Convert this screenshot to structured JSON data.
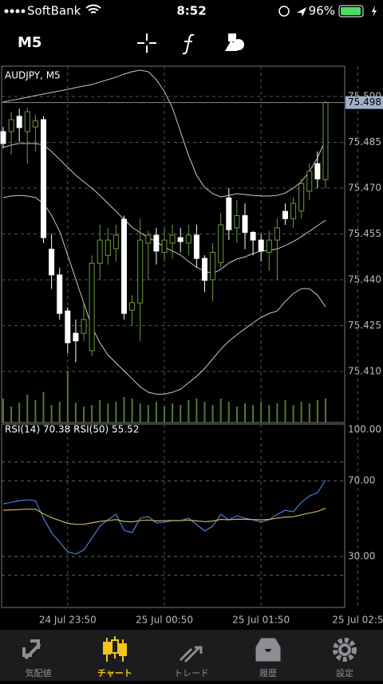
{
  "status_bar": {
    "carrier": "SoftBank",
    "time": "8:52",
    "battery": "96%"
  },
  "toolbar": {
    "timeframe": "M5"
  },
  "chart_data": [
    {
      "type": "candlestick",
      "title": "AUDJPY, M5",
      "categories": [
        null,
        null,
        null,
        null,
        null,
        null,
        null,
        null,
        "24 Jul 23:50",
        null,
        null,
        null,
        null,
        null,
        null,
        null,
        null,
        null,
        null,
        null,
        "25 Jul 00:50",
        null,
        null,
        null,
        null,
        null,
        null,
        null,
        null,
        null,
        null,
        null,
        "25 Jul 01:50",
        null,
        null,
        null,
        null,
        null,
        null,
        null,
        null,
        null,
        null,
        null,
        "25 Jul 02:5"
      ],
      "open": [
        75.4885,
        75.4885,
        75.4935,
        75.4885,
        75.49,
        75.4924,
        75.45,
        75.4416,
        75.4298,
        75.4225,
        75.4225,
        75.4168,
        75.4454,
        75.448,
        75.4502,
        75.4598,
        75.43,
        75.4324,
        75.452,
        75.4546,
        75.449,
        75.452,
        75.4538,
        75.452,
        75.4546,
        75.447,
        75.44,
        75.4456,
        75.4668,
        75.457,
        75.461,
        75.4555,
        75.453,
        75.449,
        75.453,
        75.4624,
        75.46,
        75.4625,
        75.469,
        75.478,
        75.4728,
        null,
        null,
        null,
        null
      ],
      "high": [
        75.49,
        75.495,
        75.496,
        75.4963,
        75.494,
        75.4935,
        75.455,
        75.444,
        75.431,
        75.427,
        75.432,
        75.448,
        75.458,
        75.457,
        75.458,
        75.461,
        75.435,
        75.46,
        75.456,
        75.457,
        75.457,
        75.458,
        75.457,
        75.458,
        75.458,
        75.448,
        75.452,
        75.462,
        75.47,
        75.466,
        75.465,
        75.456,
        75.455,
        75.456,
        75.46,
        75.465,
        75.467,
        75.473,
        75.478,
        75.482,
        75.4985,
        null,
        null,
        null,
        null
      ],
      "low": [
        75.483,
        75.481,
        75.485,
        75.478,
        75.482,
        75.452,
        75.437,
        75.427,
        75.416,
        75.413,
        75.42,
        75.415,
        75.44,
        75.445,
        75.446,
        75.427,
        75.425,
        75.42,
        75.44,
        75.445,
        75.446,
        75.447,
        75.449,
        75.448,
        75.444,
        75.436,
        75.433,
        75.444,
        75.453,
        75.452,
        75.45,
        75.448,
        75.446,
        75.443,
        75.44,
        75.458,
        75.457,
        75.46,
        75.466,
        75.47,
        75.47,
        null,
        null,
        null,
        null
      ],
      "close": [
        75.4846,
        75.4924,
        75.4898,
        75.495,
        75.492,
        75.4538,
        75.4416,
        75.429,
        75.4194,
        75.42,
        75.427,
        75.4454,
        75.453,
        75.453,
        75.4546,
        75.429,
        75.4325,
        75.453,
        75.4546,
        75.4494,
        75.453,
        75.4546,
        75.4525,
        75.4546,
        75.447,
        75.4398,
        75.449,
        75.458,
        75.4564,
        75.461,
        75.4555,
        75.453,
        75.4494,
        75.453,
        75.457,
        75.46,
        75.465,
        75.4715,
        75.4755,
        75.473,
        75.498,
        null,
        null,
        null,
        null
      ],
      "volumes": [
        30,
        20,
        25,
        35,
        28,
        38,
        22,
        26,
        65,
        25,
        20,
        22,
        28,
        24,
        26,
        32,
        30,
        24,
        22,
        26,
        20,
        24,
        22,
        28,
        30,
        26,
        22,
        30,
        26,
        20,
        24,
        22,
        26,
        22,
        24,
        28,
        22,
        26,
        24,
        28,
        30,
        null,
        null,
        null,
        null
      ],
      "lines": [
        {
          "color": "#c8c8c8",
          "values": [
            75.4982,
            75.4987,
            75.4992,
            75.4997,
            75.5003,
            75.5008,
            75.5013,
            75.5018,
            75.5023,
            75.5029,
            75.5034,
            75.5039,
            75.5047,
            75.5055,
            75.5063,
            75.5073,
            75.5081,
            75.5086,
            75.5081,
            75.5055,
            75.5016,
            75.4963,
            75.4885,
            75.4807,
            75.4742,
            75.4702,
            75.4682,
            75.4671,
            75.4676,
            75.4682,
            75.4679,
            75.4676,
            75.4674,
            75.4674,
            75.4676,
            75.4684,
            75.47,
            75.4721,
            75.4755,
            75.4799,
            75.4859,
            null,
            null,
            null,
            null
          ]
        },
        {
          "color": "#c8c8c8",
          "values": [
            75.4833,
            75.4841,
            75.4846,
            75.4846,
            75.4846,
            75.4841,
            75.482,
            75.4794,
            75.4768,
            75.4742,
            75.4721,
            75.47,
            75.4676,
            75.465,
            75.4624,
            75.4598,
            75.4572,
            75.4554,
            75.4538,
            75.4525,
            75.4507,
            75.4494,
            75.4481,
            75.446,
            75.4441,
            75.4428,
            75.4421,
            75.4434,
            75.4455,
            75.4468,
            75.4475,
            75.4486,
            75.4494,
            75.4496,
            75.4501,
            75.4512,
            75.4525,
            75.4541,
            75.4559,
            75.4577,
            75.4595,
            null,
            null,
            null,
            null
          ]
        },
        {
          "color": "#c8c8c8",
          "values": [
            75.4669,
            75.4674,
            75.4676,
            75.4674,
            75.4669,
            75.465,
            75.4611,
            75.4559,
            75.4481,
            75.4402,
            75.4324,
            75.4246,
            75.4194,
            75.4154,
            75.4128,
            75.4102,
            75.4076,
            75.405,
            75.4032,
            75.4026,
            75.4026,
            75.4032,
            75.4042,
            75.4063,
            75.4084,
            75.411,
            75.4141,
            75.4173,
            75.4199,
            75.422,
            75.424,
            75.4259,
            75.4277,
            75.429,
            75.4298,
            75.4329,
            75.4355,
            75.4371,
            75.4371,
            75.435,
            75.4311,
            null,
            null,
            null,
            null
          ]
        }
      ],
      "current_price": 75.498,
      "up_color": "#6b9a3c",
      "down_color": "#ffffff",
      "volume_color": "#4e7d2c",
      "ylim": [
        75.3933,
        75.5099
      ],
      "yticks": [
        {
          "value": 75.5,
          "label": "75.500"
        },
        75.485,
        {
          "value": 75.47,
          "label": "75.470"
        },
        75.455,
        {
          "value": 75.44,
          "label": "75.440"
        },
        75.425,
        {
          "value": 75.41,
          "label": "75.410"
        }
      ],
      "grid": true
    },
    {
      "type": "line",
      "title": "RSI(14) 70.38 RSI(50) 55.52",
      "series": [
        {
          "color": "#4a7fd8",
          "values": [
            57.8,
            58.6,
            59.5,
            59.9,
            59.5,
            50.2,
            42.6,
            37.6,
            32.5,
            31.3,
            33.4,
            39.7,
            46.0,
            49.4,
            52.3,
            43.9,
            42.6,
            50.2,
            51.1,
            47.7,
            48.1,
            48.9,
            48.9,
            50.2,
            46.8,
            43.5,
            46.0,
            52.3,
            49.4,
            51.5,
            50.2,
            49.4,
            48.1,
            49.4,
            52.3,
            54.4,
            53.6,
            58.6,
            62.0,
            63.7,
            70.38,
            null,
            null,
            null,
            null
          ]
        },
        {
          "color": "#c9b458",
          "values": [
            54.4,
            54.6,
            54.8,
            55.0,
            55.0,
            52.5,
            50.5,
            49.0,
            47.5,
            47.0,
            47.0,
            47.8,
            48.5,
            49.0,
            49.5,
            48.5,
            48.3,
            49.0,
            49.2,
            48.8,
            48.9,
            49.0,
            49.0,
            49.2,
            48.8,
            48.4,
            48.7,
            49.6,
            49.4,
            49.7,
            49.6,
            49.5,
            49.4,
            49.6,
            50.2,
            50.8,
            51.0,
            52.0,
            53.0,
            53.8,
            55.52,
            null,
            null,
            null,
            null
          ]
        }
      ],
      "ylim": [
        3,
        100
      ],
      "yticks": [
        {
          "value": 100,
          "label": "100.00"
        },
        {
          "value": 70,
          "label": "70.00"
        },
        {
          "value": 30,
          "label": "30.00"
        }
      ],
      "levels": [
        80,
        70,
        30,
        20
      ],
      "grid": true
    }
  ],
  "tab_bar": {
    "tabs": [
      "気配値",
      "チャート",
      "トレード",
      "履歴",
      "設定"
    ],
    "active": 1
  }
}
